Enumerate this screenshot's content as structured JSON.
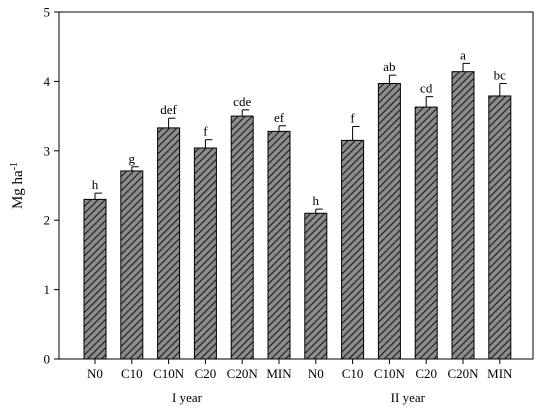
{
  "chart_data": {
    "type": "bar",
    "ylabel": "Mg ha",
    "ylabel_superscript": "-1",
    "ylim": [
      0,
      5
    ],
    "yticks": [
      "0",
      "1",
      "2",
      "3",
      "4",
      "5"
    ],
    "grid": false,
    "legend": "none",
    "bar_fill": "#8c8c8c",
    "hatch": "diagonal",
    "groups": [
      {
        "label": "I year",
        "categories": [
          "N0",
          "C10",
          "C10N",
          "C20",
          "C20N",
          "MIN"
        ],
        "values": [
          2.3,
          2.71,
          3.33,
          3.04,
          3.5,
          3.28
        ],
        "errors": [
          0.09,
          0.06,
          0.14,
          0.12,
          0.09,
          0.08
        ],
        "letters": [
          "h",
          "g",
          "def",
          "f",
          "cde",
          "ef"
        ]
      },
      {
        "label": "II year",
        "categories": [
          "N0",
          "C10",
          "C10N",
          "C20",
          "C20N",
          "MIN"
        ],
        "values": [
          2.1,
          3.15,
          3.97,
          3.63,
          4.14,
          3.79
        ],
        "errors": [
          0.06,
          0.2,
          0.12,
          0.15,
          0.12,
          0.18
        ],
        "letters": [
          "h",
          "f",
          "ab",
          "cd",
          "a",
          "bc"
        ]
      }
    ]
  }
}
